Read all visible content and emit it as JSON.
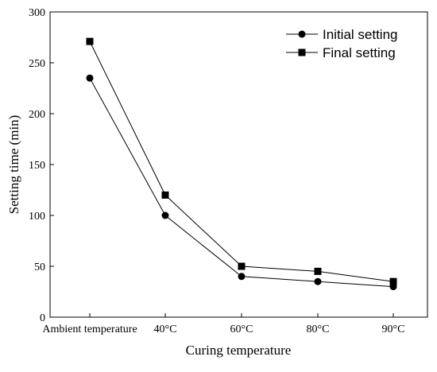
{
  "chart_data": {
    "type": "line",
    "categories": [
      "Ambient temperature",
      "40°C",
      "60°C",
      "80°C",
      "90°C"
    ],
    "series": [
      {
        "name": "Initial setting",
        "marker": "circle",
        "values": [
          235,
          100,
          40,
          35,
          30
        ]
      },
      {
        "name": "Final setting",
        "marker": "square",
        "values": [
          271,
          120,
          50,
          45,
          35
        ]
      }
    ],
    "xlabel": "Curing temperature",
    "ylabel": "Setting time (min)",
    "ylim": [
      0,
      300
    ],
    "yticks": [
      0,
      50,
      100,
      150,
      200,
      250,
      300
    ],
    "grid": false,
    "legend_position": "top-right",
    "colors": {
      "line": "#000000",
      "marker": "#000000"
    }
  }
}
